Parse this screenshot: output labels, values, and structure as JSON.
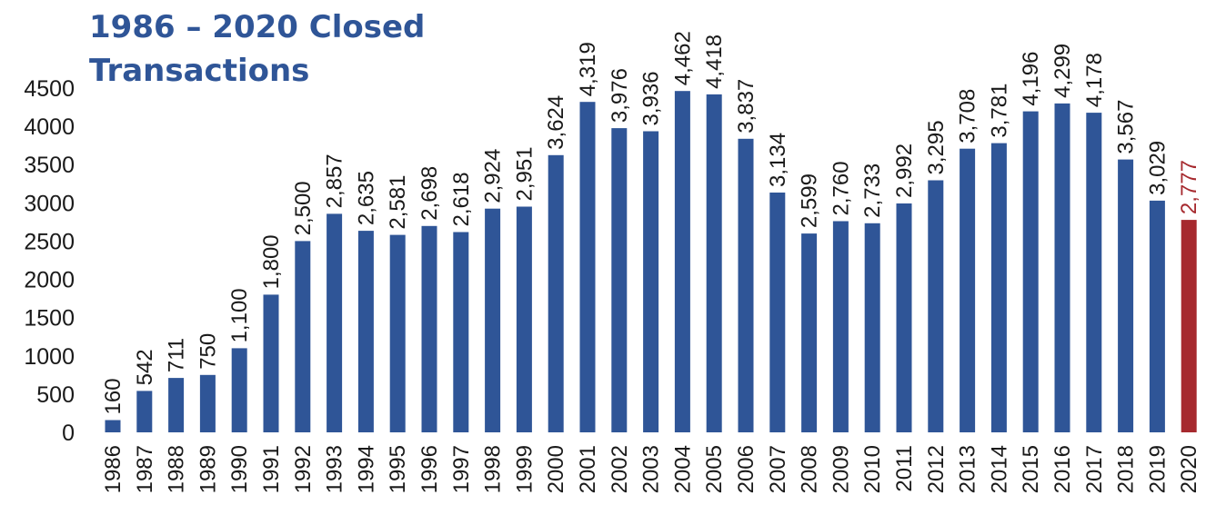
{
  "chart_data": {
    "type": "bar",
    "title_lines": [
      "1986 – 2020 Closed",
      "Transactions"
    ],
    "categories": [
      "1986",
      "1987",
      "1988",
      "1989",
      "1990",
      "1991",
      "1992",
      "1993",
      "1994",
      "1995",
      "1996",
      "1997",
      "1998",
      "1999",
      "2000",
      "2001",
      "2002",
      "2003",
      "2004",
      "2005",
      "2006",
      "2007",
      "2008",
      "2009",
      "2010",
      "2011",
      "2012",
      "2013",
      "2014",
      "2015",
      "2016",
      "2017",
      "2018",
      "2019",
      "2020"
    ],
    "values": [
      160,
      542,
      711,
      750,
      1100,
      1800,
      2500,
      2857,
      2635,
      2581,
      2698,
      2618,
      2924,
      2951,
      3624,
      4319,
      3976,
      3936,
      4462,
      4418,
      3837,
      3134,
      2599,
      2760,
      2733,
      2992,
      3295,
      3708,
      3781,
      4196,
      4299,
      4178,
      3567,
      3029,
      2777
    ],
    "data_labels": [
      "160",
      "542",
      "711",
      "750",
      "1,100",
      "1,800",
      "2,500",
      "2,857",
      "2,635",
      "2,581",
      "2,698",
      "2,618",
      "2,924",
      "2,951",
      "3,624",
      "4,319",
      "3,976",
      "3,936",
      "4,462",
      "4,418",
      "3,837",
      "3,134",
      "2,599",
      "2,760",
      "2,733",
      "2,992",
      "3,295",
      "3,708",
      "3,781",
      "4,196",
      "4,299",
      "4,178",
      "3,567",
      "3,029",
      "2,777"
    ],
    "y_ticks": [
      0,
      500,
      1000,
      1500,
      2000,
      2500,
      3000,
      3500,
      4000,
      4500
    ],
    "ylim": [
      0,
      4500
    ],
    "xlabel": "",
    "ylabel": "",
    "grid": false,
    "legend": "none",
    "highlight_category": "2020",
    "colors": {
      "bar": "#2f5597",
      "highlight_bar": "#a6292e",
      "highlight_label": "#a6292e",
      "title": "#2f5597",
      "text": "#1a1a1a"
    }
  }
}
